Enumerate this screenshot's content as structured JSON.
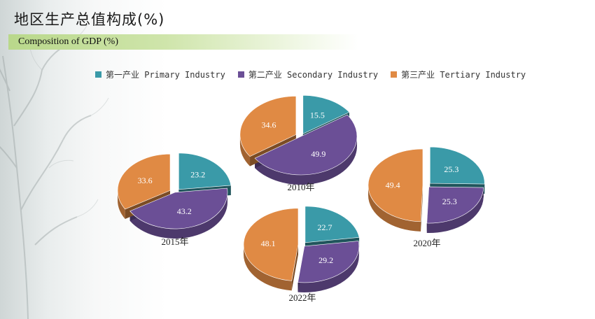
{
  "page": {
    "title_cn": "地区生产总值构成(%)",
    "subtitle_en": "Composition of GDP (%)"
  },
  "legend": [
    {
      "label": "第一产业 Primary Industry",
      "color": "#3a9aa8"
    },
    {
      "label": "第二产业 Secondary Industry",
      "color": "#6b4f96"
    },
    {
      "label": "第三产业 Tertiary Industry",
      "color": "#e08a44"
    }
  ],
  "chart_data": [
    {
      "type": "pie",
      "title": "2010年",
      "categories": [
        "第一产业 Primary Industry",
        "第二产业 Secondary Industry",
        "第三产业 Tertiary Industry"
      ],
      "values": [
        15.5,
        49.9,
        34.6
      ]
    },
    {
      "type": "pie",
      "title": "2015年",
      "categories": [
        "第一产业 Primary Industry",
        "第二产业 Secondary Industry",
        "第三产业 Tertiary Industry"
      ],
      "values": [
        23.2,
        43.2,
        33.6
      ]
    },
    {
      "type": "pie",
      "title": "2020年",
      "categories": [
        "第一产业 Primary Industry",
        "第二产业 Secondary Industry",
        "第三产业 Tertiary Industry"
      ],
      "values": [
        25.3,
        25.3,
        49.4
      ]
    },
    {
      "type": "pie",
      "title": "2022年",
      "categories": [
        "第一产业 Primary Industry",
        "第二产业 Secondary Industry",
        "第三产业 Tertiary Industry"
      ],
      "values": [
        22.7,
        29.2,
        48.1
      ]
    }
  ]
}
